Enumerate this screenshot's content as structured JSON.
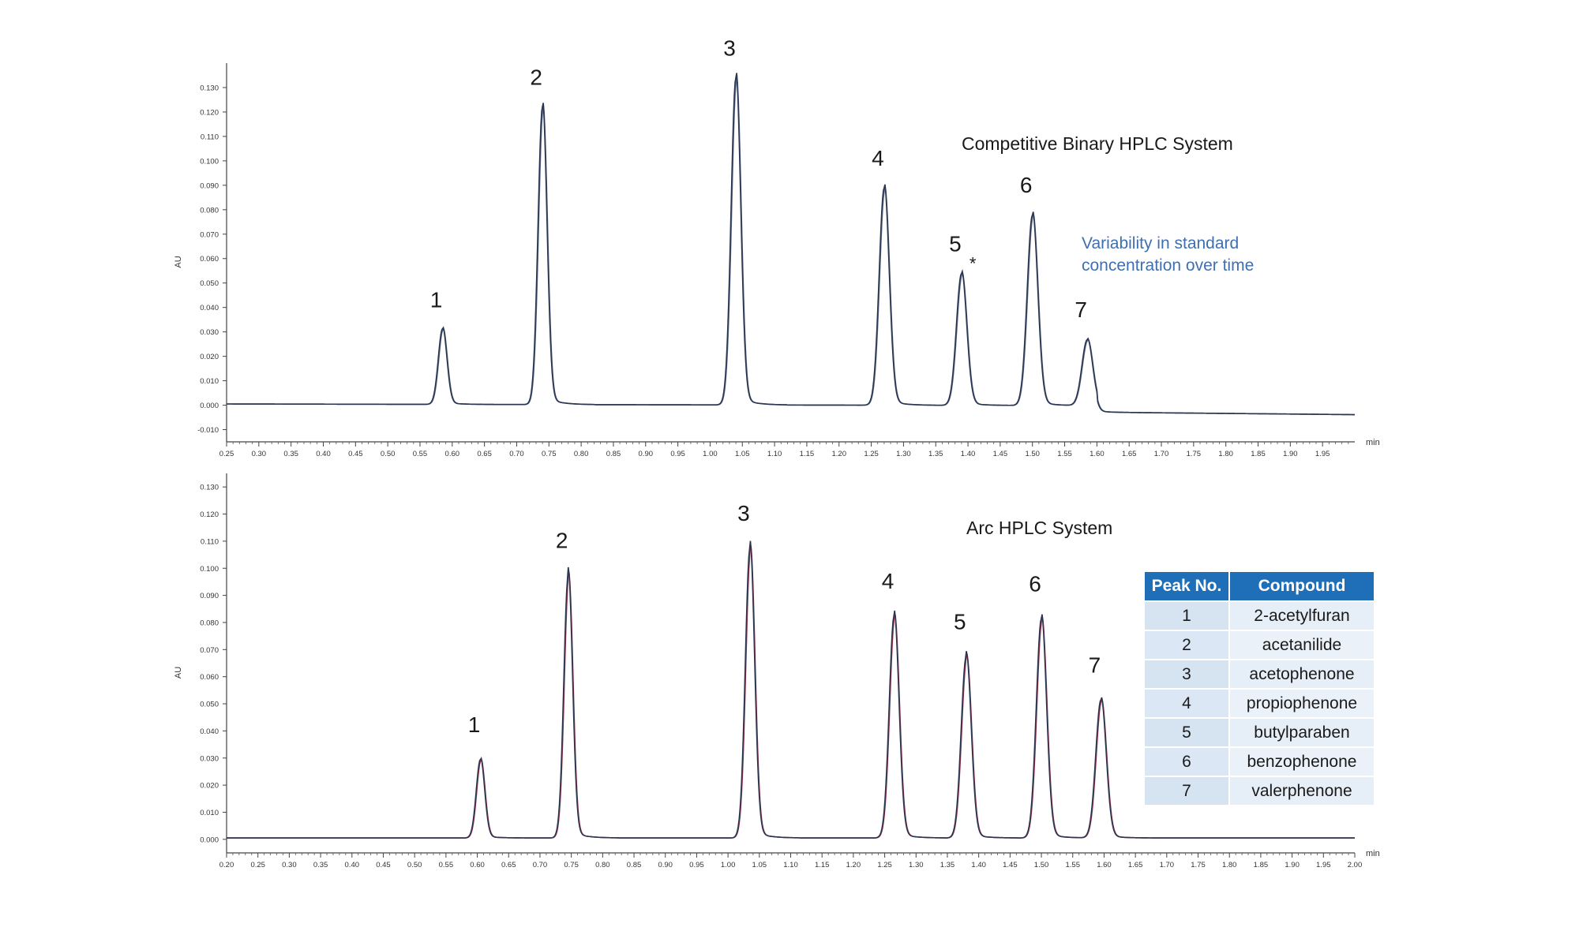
{
  "chart_data": [
    {
      "type": "line",
      "title": "Competitive Binary HPLC System",
      "annotation": "Variability in standard concentration over time",
      "annotation_lines": [
        "Variability in standard",
        "concentration over time"
      ],
      "ylabel": "AU",
      "xlabel": "min",
      "xlim": [
        0.25,
        2.0
      ],
      "ylim": [
        -0.015,
        0.14
      ],
      "x_ticks": [
        "0.25",
        "0.30",
        "0.35",
        "0.40",
        "0.45",
        "0.50",
        "0.55",
        "0.60",
        "0.65",
        "0.70",
        "0.75",
        "0.80",
        "0.85",
        "0.90",
        "0.95",
        "1.00",
        "1.05",
        "1.10",
        "1.15",
        "1.20",
        "1.25",
        "1.30",
        "1.35",
        "1.40",
        "1.45",
        "1.50",
        "1.55",
        "1.60",
        "1.65",
        "1.70",
        "1.75",
        "1.80",
        "1.85",
        "1.90",
        "1.95"
      ],
      "y_ticks": [
        "-0.010",
        "0.000",
        "0.010",
        "0.020",
        "0.030",
        "0.040",
        "0.050",
        "0.060",
        "0.070",
        "0.080",
        "0.090",
        "0.100",
        "0.110",
        "0.120",
        "0.130"
      ],
      "peaks": [
        {
          "label": "1",
          "x": 0.585,
          "y": 0.031
        },
        {
          "label": "2",
          "x": 0.74,
          "y": 0.122
        },
        {
          "label": "3",
          "x": 1.04,
          "y": 0.134
        },
        {
          "label": "4",
          "x": 1.27,
          "y": 0.089
        },
        {
          "label": "5",
          "x": 1.39,
          "y": 0.054,
          "mark": "*"
        },
        {
          "label": "6",
          "x": 1.5,
          "y": 0.078
        },
        {
          "label": "7",
          "x": 1.585,
          "y": 0.027
        }
      ],
      "series_colors": [
        "#2a3550",
        "#5a6a88"
      ]
    },
    {
      "type": "line",
      "title": "Arc HPLC System",
      "ylabel": "AU",
      "xlabel": "min",
      "xlim": [
        0.2,
        2.0
      ],
      "ylim": [
        -0.005,
        0.135
      ],
      "x_ticks": [
        "0.20",
        "0.25",
        "0.30",
        "0.35",
        "0.40",
        "0.45",
        "0.50",
        "0.55",
        "0.60",
        "0.65",
        "0.70",
        "0.75",
        "0.80",
        "0.85",
        "0.90",
        "0.95",
        "1.00",
        "1.05",
        "1.10",
        "1.15",
        "1.20",
        "1.25",
        "1.30",
        "1.35",
        "1.40",
        "1.45",
        "1.50",
        "1.55",
        "1.60",
        "1.65",
        "1.70",
        "1.75",
        "1.80",
        "1.85",
        "1.90",
        "1.95",
        "2.00"
      ],
      "y_ticks": [
        "0.000",
        "0.010",
        "0.020",
        "0.030",
        "0.040",
        "0.050",
        "0.060",
        "0.070",
        "0.080",
        "0.090",
        "0.100",
        "0.110",
        "0.120",
        "0.130"
      ],
      "peaks": [
        {
          "label": "1",
          "x": 0.605,
          "y": 0.029
        },
        {
          "label": "2",
          "x": 0.745,
          "y": 0.097
        },
        {
          "label": "3",
          "x": 1.035,
          "y": 0.107
        },
        {
          "label": "4",
          "x": 1.265,
          "y": 0.082
        },
        {
          "label": "5",
          "x": 1.38,
          "y": 0.067
        },
        {
          "label": "6",
          "x": 1.5,
          "y": 0.081
        },
        {
          "label": "7",
          "x": 1.595,
          "y": 0.051
        }
      ],
      "series_colors": [
        "#2a3550",
        "#a0304a"
      ]
    }
  ],
  "peak_table": {
    "headers": [
      "Peak No.",
      "Compound"
    ],
    "rows": [
      {
        "no": "1",
        "compound": "2-acetylfuran"
      },
      {
        "no": "2",
        "compound": "acetanilide"
      },
      {
        "no": "3",
        "compound": "acetophenone"
      },
      {
        "no": "4",
        "compound": "propiophenone"
      },
      {
        "no": "5",
        "compound": "butylparaben"
      },
      {
        "no": "6",
        "compound": "benzophenone"
      },
      {
        "no": "7",
        "compound": "valerphenone"
      }
    ]
  }
}
